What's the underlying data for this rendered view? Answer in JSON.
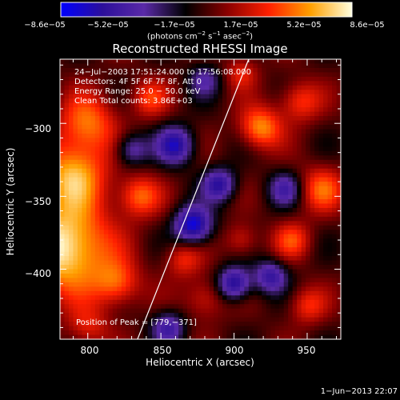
{
  "colorbar": {
    "min": -8.6e-05,
    "max": 8.6e-05,
    "tick_labels": [
      "−8.6e−05",
      "−5.2e−05",
      "−1.7e−05",
      "1.7e−05",
      "5.2e−05",
      "8.6e−05"
    ],
    "unit_main": "(photons cm",
    "unit_exp1": "−2",
    "unit_mid": " s",
    "unit_exp2": "−1",
    "unit_tail": " asec",
    "unit_exp3": "−2",
    "unit_end": ")"
  },
  "title": "Reconstructed RHESSI Image",
  "info_lines": [
    "24−Jul−2003 17:51:24.000 to 17:56:08.000",
    "Detectors: 4F 5F 6F 7F 8F, Att 0",
    "Energy Range: 25.0 − 50.0 keV",
    "Clean     Total counts: 3.86E+03"
  ],
  "peak_label": "Position of Peak = [779,−371]",
  "timestamp": "1−Jun−2013 22:07",
  "chart_data": {
    "type": "heatmap",
    "title": "Reconstructed RHESSI Image",
    "xlabel": "Heliocentric X (arcsec)",
    "ylabel": "Heliocentric Y (arcsec)",
    "xlim": [
      781,
      973
    ],
    "ylim": [
      -448,
      -256
    ],
    "x_ticks": [
      800,
      850,
      900,
      950
    ],
    "x_tick_labels": [
      "800",
      "850",
      "900",
      "950"
    ],
    "y_ticks": [
      -300,
      -350,
      -400
    ],
    "y_tick_labels": [
      "−300",
      "−350",
      "−400"
    ],
    "value_range": [
      -8.6e-05,
      8.6e-05
    ],
    "colormap": [
      "#0000ff",
      "#2c0f9a",
      "#5a2aa8",
      "#000000",
      "#8a0000",
      "#ff2000",
      "#ffa000",
      "#ffffe0"
    ],
    "limb_line": [
      [
        834,
        -448
      ],
      [
        910,
        -256
      ]
    ],
    "peak_position": [
      779,
      -371
    ],
    "blobs": [
      {
        "x": 784,
        "y": -385,
        "value": 8.6e-05,
        "size": 22
      },
      {
        "x": 790,
        "y": -335,
        "value": 6.2e-05,
        "size": 16
      },
      {
        "x": 800,
        "y": -300,
        "value": 5e-05,
        "size": 14
      },
      {
        "x": 820,
        "y": -410,
        "value": 4.5e-05,
        "size": 11
      },
      {
        "x": 835,
        "y": -350,
        "value": 4.8e-05,
        "size": 10
      },
      {
        "x": 842,
        "y": -283,
        "value": 3.6e-05,
        "size": 9
      },
      {
        "x": 865,
        "y": -393,
        "value": 3.4e-05,
        "size": 9
      },
      {
        "x": 880,
        "y": -420,
        "value": 3.2e-05,
        "size": 10
      },
      {
        "x": 905,
        "y": -380,
        "value": 3e-05,
        "size": 8
      },
      {
        "x": 918,
        "y": -303,
        "value": 5.8e-05,
        "size": 10
      },
      {
        "x": 905,
        "y": -265,
        "value": 3.1e-05,
        "size": 8
      },
      {
        "x": 945,
        "y": -285,
        "value": 4e-05,
        "size": 10
      },
      {
        "x": 960,
        "y": -345,
        "value": 4.4e-05,
        "size": 11
      },
      {
        "x": 940,
        "y": -380,
        "value": 3.8e-05,
        "size": 9
      },
      {
        "x": 950,
        "y": -425,
        "value": 3.5e-05,
        "size": 9
      },
      {
        "x": 800,
        "y": -440,
        "value": 3e-05,
        "size": 10
      },
      {
        "x": 860,
        "y": -315,
        "value": -6.5e-05,
        "size": 9
      },
      {
        "x": 872,
        "y": -370,
        "value": -8e-05,
        "size": 9
      },
      {
        "x": 890,
        "y": -342,
        "value": -6e-05,
        "size": 8
      },
      {
        "x": 855,
        "y": -440,
        "value": -5e-05,
        "size": 8
      },
      {
        "x": 925,
        "y": -405,
        "value": -5.5e-05,
        "size": 8
      },
      {
        "x": 830,
        "y": -318,
        "value": -4.5e-05,
        "size": 8
      },
      {
        "x": 900,
        "y": -410,
        "value": -7e-05,
        "size": 8
      },
      {
        "x": 935,
        "y": -345,
        "value": -4.5e-05,
        "size": 8
      },
      {
        "x": 880,
        "y": -270,
        "value": -3.5e-05,
        "size": 8
      }
    ]
  }
}
